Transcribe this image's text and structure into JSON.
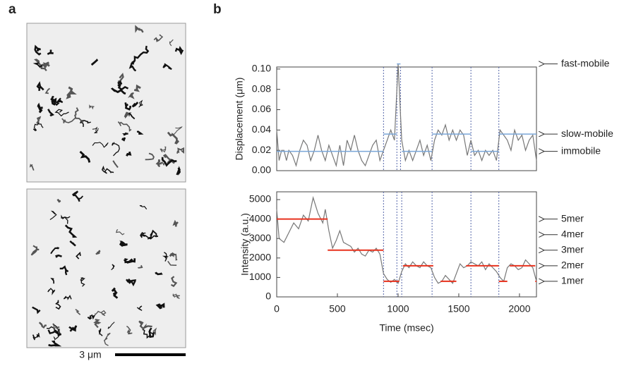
{
  "panels": {
    "a": {
      "label": "a",
      "scale_bar": "3 μm"
    },
    "b": {
      "label": "b"
    }
  },
  "chart_data": [
    {
      "type": "line",
      "ylabel": "Displacement (μm)",
      "xlim": [
        0,
        2140
      ],
      "ylim": [
        0,
        0.102
      ],
      "yticks": [
        {
          "value": 0,
          "label": "0.00"
        },
        {
          "value": 0.02,
          "label": "0.02"
        },
        {
          "value": 0.04,
          "label": "0.04"
        },
        {
          "value": 0.06,
          "label": "0.06"
        },
        {
          "value": 0.08,
          "label": "0.08"
        },
        {
          "value": 0.1,
          "label": "0.10"
        }
      ],
      "transitions": [
        880,
        990,
        1020,
        1280,
        1600,
        1830
      ],
      "x": [
        0,
        20,
        40,
        60,
        80,
        100,
        130,
        160,
        190,
        220,
        250,
        280,
        310,
        340,
        370,
        400,
        430,
        460,
        490,
        520,
        550,
        580,
        610,
        640,
        670,
        700,
        730,
        760,
        790,
        820,
        850,
        880,
        910,
        940,
        970,
        1000,
        1030,
        1060,
        1090,
        1120,
        1150,
        1180,
        1210,
        1240,
        1270,
        1300,
        1330,
        1360,
        1390,
        1420,
        1450,
        1480,
        1510,
        1540,
        1570,
        1600,
        1630,
        1660,
        1690,
        1720,
        1750,
        1780,
        1810,
        1840,
        1870,
        1900,
        1930,
        1960,
        1990,
        2020,
        2050,
        2080,
        2110,
        2140
      ],
      "series": [
        {
          "color": "#777777",
          "values": [
            0.04,
            0.01,
            0.02,
            0.02,
            0.01,
            0.02,
            0.015,
            0.005,
            0.02,
            0.03,
            0.025,
            0.01,
            0.02,
            0.035,
            0.02,
            0.01,
            0.025,
            0.015,
            0.005,
            0.025,
            0.005,
            0.03,
            0.02,
            0.035,
            0.02,
            0.01,
            0.005,
            0.015,
            0.025,
            0.03,
            0.01,
            0.02,
            0.03,
            0.04,
            0.03,
            0.105,
            0.03,
            0.01,
            0.02,
            0.01,
            0.02,
            0.03,
            0.015,
            0.025,
            0.01,
            0.03,
            0.04,
            0.035,
            0.045,
            0.03,
            0.04,
            0.03,
            0.04,
            0.035,
            0.015,
            0.03,
            0.015,
            0.02,
            0.01,
            0.02,
            0.015,
            0.02,
            0.01,
            0.04,
            0.035,
            0.03,
            0.02,
            0.04,
            0.03,
            0.035,
            0.02,
            0.03,
            0.035,
            0.01
          ]
        }
      ],
      "levels": {
        "color": "#7aa6d8",
        "starts": [
          0,
          880,
          990,
          1030,
          1280,
          1600,
          1830
        ],
        "ends": [
          880,
          990,
          1020,
          1280,
          1600,
          1830,
          2140
        ],
        "values": [
          0.019,
          0.036,
          0.105,
          0.019,
          0.036,
          0.019,
          0.036
        ]
      },
      "annotations": [
        {
          "value": 0.105,
          "label": "fast-mobile"
        },
        {
          "value": 0.036,
          "label": "slow-mobile"
        },
        {
          "value": 0.019,
          "label": "immobile"
        }
      ]
    },
    {
      "type": "line",
      "ylabel": "Intensity (a.u.)",
      "xlabel": "Time (msec)",
      "xlim": [
        0,
        2140
      ],
      "ylim": [
        0,
        5400
      ],
      "xticks": [
        0,
        500,
        1000,
        1500,
        2000
      ],
      "yticks": [
        0,
        1000,
        2000,
        3000,
        4000,
        5000
      ],
      "transitions": [
        880,
        990,
        1030,
        1280,
        1600,
        1830
      ],
      "x": [
        0,
        20,
        60,
        100,
        140,
        180,
        220,
        260,
        300,
        340,
        380,
        400,
        430,
        460,
        490,
        520,
        550,
        580,
        610,
        640,
        670,
        700,
        730,
        760,
        790,
        820,
        850,
        880,
        910,
        940,
        970,
        1000,
        1030,
        1060,
        1090,
        1120,
        1150,
        1180,
        1210,
        1240,
        1270,
        1300,
        1330,
        1360,
        1390,
        1420,
        1450,
        1480,
        1510,
        1540,
        1570,
        1600,
        1630,
        1660,
        1690,
        1720,
        1750,
        1780,
        1810,
        1840,
        1870,
        1900,
        1930,
        1960,
        1990,
        2020,
        2050,
        2080,
        2110,
        2140
      ],
      "series": [
        {
          "color": "#777777",
          "values": [
            4500,
            3000,
            2800,
            3300,
            3800,
            3500,
            4200,
            3900,
            5100,
            4300,
            3800,
            4500,
            3400,
            2500,
            2900,
            3400,
            2800,
            2700,
            2600,
            2300,
            2500,
            2200,
            2100,
            2400,
            2300,
            2500,
            2200,
            1200,
            900,
            750,
            900,
            700,
            1300,
            1700,
            1500,
            1800,
            1600,
            1500,
            1800,
            1600,
            1500,
            1000,
            700,
            800,
            1100,
            900,
            700,
            1200,
            1700,
            1500,
            1600,
            1800,
            1700,
            1600,
            1800,
            1400,
            1700,
            1500,
            1300,
            1000,
            800,
            1500,
            1700,
            1600,
            1400,
            1500,
            1900,
            1700,
            1500,
            800
          ]
        }
      ],
      "levels": {
        "color": "#e8321e",
        "starts": [
          0,
          420,
          880,
          1040,
          1350,
          1560,
          1830,
          1920,
          2130
        ],
        "ends": [
          420,
          880,
          1010,
          1290,
          1480,
          1830,
          1900,
          2130,
          2140
        ],
        "values": [
          4000,
          2400,
          800,
          1600,
          800,
          1600,
          800,
          1600,
          800
        ]
      },
      "annotations": [
        {
          "value": 4000,
          "label": "5mer"
        },
        {
          "value": 3200,
          "label": "4mer"
        },
        {
          "value": 2400,
          "label": "3mer"
        },
        {
          "value": 1600,
          "label": "2mer"
        },
        {
          "value": 800,
          "label": "1mer"
        }
      ]
    }
  ]
}
